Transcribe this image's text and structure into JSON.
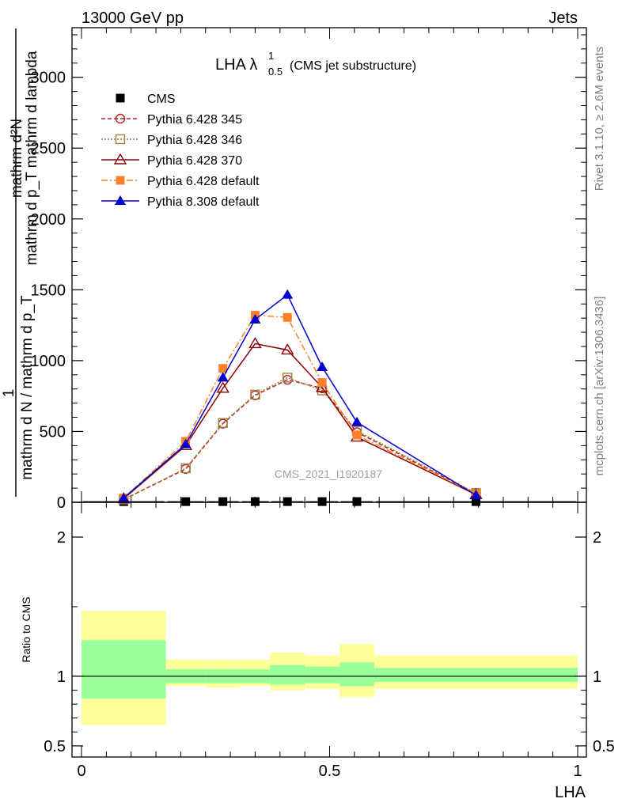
{
  "header": {
    "left": "13000 GeV pp",
    "right": "Jets"
  },
  "side": {
    "rivet": "Rivet 3.1.10, ≥ 2.6M events",
    "mcplots": "mcplots.cern.ch [arXiv:1306.3436]"
  },
  "chart_data": {
    "type": "line",
    "title_main": "LHA λ",
    "title_sup": "1",
    "title_sub": "0.5",
    "title_note": "(CMS jet substructure)",
    "watermark": "CMS_2021_I1920187",
    "xlabel": "LHA",
    "ylabel_top": "mathrm d²N",
    "ylabel_top2": "mathrm d p_T mathrm d lambda",
    "ylabel_prefix": "1",
    "ylabel_bottom": "mathrm d N / mathrm d p_T",
    "ratio_ylabel": "Ratio to CMS",
    "xlim": [
      0,
      1
    ],
    "ylim": [
      0,
      3350
    ],
    "ratio_ylim": [
      0.42,
      2.25
    ],
    "x_ticks": [
      {
        "v": 0,
        "label": "0"
      },
      {
        "v": 0.5,
        "label": "0.5"
      },
      {
        "v": 1,
        "label": "1"
      }
    ],
    "y_ticks": [
      {
        "v": 0,
        "label": "0"
      },
      {
        "v": 500,
        "label": "500"
      },
      {
        "v": 1000,
        "label": "1000"
      },
      {
        "v": 1500,
        "label": "1500"
      },
      {
        "v": 2000,
        "label": "2000"
      },
      {
        "v": 2500,
        "label": "2500"
      },
      {
        "v": 3000,
        "label": "3000"
      }
    ],
    "ratio_ticks": [
      {
        "v": 0.5,
        "label": "0.5"
      },
      {
        "v": 1,
        "label": "1"
      },
      {
        "v": 2,
        "label": "2"
      }
    ],
    "x": [
      0.085,
      0.21,
      0.285,
      0.35,
      0.415,
      0.485,
      0.555,
      0.795
    ],
    "bins": [
      [
        0.0,
        0.17
      ],
      [
        0.17,
        0.25
      ],
      [
        0.25,
        0.32
      ],
      [
        0.32,
        0.38
      ],
      [
        0.38,
        0.45
      ],
      [
        0.45,
        0.52
      ],
      [
        0.52,
        0.59
      ],
      [
        0.59,
        1.0
      ]
    ],
    "series": [
      {
        "name": "CMS",
        "values": [
          5,
          5,
          5,
          5,
          5,
          5,
          5,
          5
        ],
        "color": "#000000",
        "dash": "",
        "marker": "square-filled"
      },
      {
        "name": "Pythia 6.428 345",
        "values": [
          20,
          235,
          555,
          755,
          865,
          805,
          495,
          60
        ],
        "color": "#b22222",
        "dash": "5,3",
        "marker": "circle-open"
      },
      {
        "name": "Pythia 6.428 346",
        "values": [
          20,
          240,
          560,
          760,
          880,
          790,
          505,
          65
        ],
        "color": "#a08040",
        "dash": "2,2",
        "marker": "square-open"
      },
      {
        "name": "Pythia 6.428 370",
        "values": [
          25,
          400,
          805,
          1120,
          1075,
          810,
          460,
          55
        ],
        "color": "#8b0000",
        "dash": "",
        "marker": "triangle-open"
      },
      {
        "name": "Pythia 6.428 default",
        "values": [
          30,
          430,
          945,
          1320,
          1305,
          845,
          475,
          60
        ],
        "color": "#ff7f2a",
        "dash": "8,3,2,3",
        "marker": "square-filled"
      },
      {
        "name": "Pythia 8.308 default",
        "values": [
          30,
          410,
          880,
          1290,
          1465,
          955,
          565,
          50
        ],
        "color": "#0000cc",
        "dash": "",
        "marker": "triangle-filled"
      }
    ],
    "ratio_band_inner": [
      [
        0.84,
        1.26
      ],
      [
        0.95,
        1.05
      ],
      [
        0.95,
        1.05
      ],
      [
        0.95,
        1.05
      ],
      [
        0.94,
        1.08
      ],
      [
        0.95,
        1.07
      ],
      [
        0.93,
        1.1
      ],
      [
        0.96,
        1.06
      ]
    ],
    "ratio_band_outer": [
      [
        0.65,
        1.47
      ],
      [
        0.93,
        1.12
      ],
      [
        0.92,
        1.12
      ],
      [
        0.93,
        1.12
      ],
      [
        0.9,
        1.17
      ],
      [
        0.91,
        1.15
      ],
      [
        0.85,
        1.23
      ],
      [
        0.91,
        1.15
      ]
    ],
    "colors": {
      "band_inner": "#99ff99",
      "band_outer": "#ffff99"
    }
  }
}
